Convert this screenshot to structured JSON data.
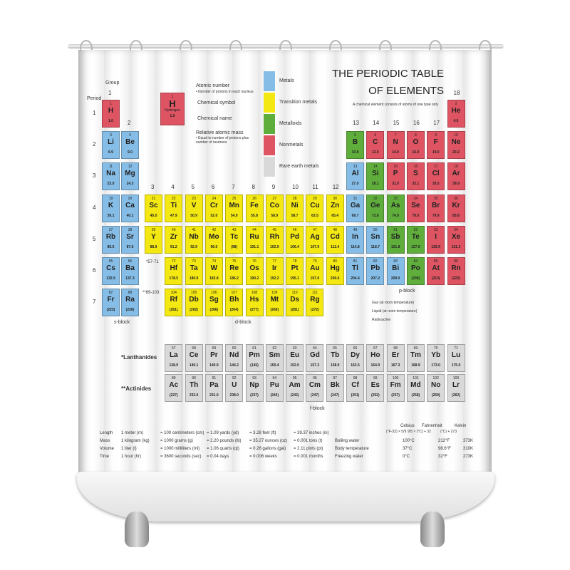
{
  "title_line1": "THE PERIODIC TABLE",
  "title_line2": "OF ELEMENTS",
  "subtitle": "A chemical element consists of atoms of one type only",
  "group_label": "Group",
  "period_label": "Period",
  "groups": [
    "1",
    "2",
    "3",
    "4",
    "5",
    "6",
    "7",
    "8",
    "9",
    "10",
    "11",
    "12",
    "13",
    "14",
    "15",
    "16",
    "17",
    "18"
  ],
  "periods": [
    "1",
    "2",
    "3",
    "4",
    "5",
    "6",
    "7"
  ],
  "key": {
    "number": "1",
    "symbol": "H",
    "name": "Hydrogen",
    "mass": "1.0",
    "labels": [
      "Atomic number",
      "• Number of protons in each nucleus",
      "Chemical symbol",
      "Chemical name",
      "Relative atomic mass",
      "• Equal to number of protons plus number of neutrons"
    ]
  },
  "legend": [
    {
      "label": "Metals",
      "color": "#86bde6"
    },
    {
      "label": "Transition metals",
      "color": "#f4e812"
    },
    {
      "label": "Metalloids",
      "color": "#5fae3c"
    },
    {
      "label": "Nonmetals",
      "color": "#de5462"
    },
    {
      "label": "Rare earth metals",
      "color": "#d9d9d9"
    }
  ],
  "colors": {
    "m": "#86bde6",
    "t": "#f4e812",
    "g": "#5fae3c",
    "n": "#de5462",
    "r": "#d9d9d9"
  },
  "placeholders": [
    "*57-71",
    "**89-103"
  ],
  "blocks": {
    "s": "s-block",
    "d": "d-block",
    "p": "p-block",
    "f": "f-block"
  },
  "states": [
    "Gas (at room temperature)",
    "Liquid (at room temperature)",
    "Radioactive"
  ],
  "lanthanides_label": "*Lanthanides",
  "actinides_label": "**Actinides",
  "elements": [
    [
      1,
      "H",
      "1.0",
      "n",
      1,
      1
    ],
    [
      2,
      "He",
      "4.0",
      "n",
      1,
      18
    ],
    [
      3,
      "Li",
      "6.9",
      "m",
      2,
      1
    ],
    [
      4,
      "Be",
      "9.0",
      "m",
      2,
      2
    ],
    [
      5,
      "B",
      "10.8",
      "g",
      2,
      13
    ],
    [
      6,
      "C",
      "12.0",
      "n",
      2,
      14
    ],
    [
      7,
      "N",
      "14.0",
      "n",
      2,
      15
    ],
    [
      8,
      "O",
      "16.0",
      "n",
      2,
      16
    ],
    [
      9,
      "F",
      "19.0",
      "n",
      2,
      17
    ],
    [
      10,
      "Ne",
      "20.2",
      "n",
      2,
      18
    ],
    [
      11,
      "Na",
      "23.0",
      "m",
      3,
      1
    ],
    [
      12,
      "Mg",
      "24.3",
      "m",
      3,
      2
    ],
    [
      13,
      "Al",
      "27.0",
      "m",
      3,
      13
    ],
    [
      14,
      "Si",
      "28.1",
      "g",
      3,
      14
    ],
    [
      15,
      "P",
      "31.0",
      "n",
      3,
      15
    ],
    [
      16,
      "S",
      "32.1",
      "n",
      3,
      16
    ],
    [
      17,
      "Cl",
      "35.5",
      "n",
      3,
      17
    ],
    [
      18,
      "Ar",
      "39.9",
      "n",
      3,
      18
    ],
    [
      19,
      "K",
      "39.1",
      "m",
      4,
      1
    ],
    [
      20,
      "Ca",
      "40.1",
      "m",
      4,
      2
    ],
    [
      21,
      "Sc",
      "45.0",
      "t",
      4,
      3
    ],
    [
      22,
      "Ti",
      "47.9",
      "t",
      4,
      4
    ],
    [
      23,
      "V",
      "50.9",
      "t",
      4,
      5
    ],
    [
      24,
      "Cr",
      "52.0",
      "t",
      4,
      6
    ],
    [
      25,
      "Mn",
      "54.9",
      "t",
      4,
      7
    ],
    [
      26,
      "Fe",
      "55.8",
      "t",
      4,
      8
    ],
    [
      27,
      "Co",
      "58.9",
      "t",
      4,
      9
    ],
    [
      28,
      "Ni",
      "58.7",
      "t",
      4,
      10
    ],
    [
      29,
      "Cu",
      "63.5",
      "t",
      4,
      11
    ],
    [
      30,
      "Zn",
      "65.4",
      "t",
      4,
      12
    ],
    [
      31,
      "Ga",
      "69.7",
      "m",
      4,
      13
    ],
    [
      32,
      "Ge",
      "72.6",
      "g",
      4,
      14
    ],
    [
      33,
      "As",
      "74.9",
      "g",
      4,
      15
    ],
    [
      34,
      "Se",
      "79.0",
      "n",
      4,
      16
    ],
    [
      35,
      "Br",
      "79.9",
      "n",
      4,
      17
    ],
    [
      36,
      "Kr",
      "83.8",
      "n",
      4,
      18
    ],
    [
      37,
      "Rb",
      "85.5",
      "m",
      5,
      1
    ],
    [
      38,
      "Sr",
      "87.6",
      "m",
      5,
      2
    ],
    [
      39,
      "Y",
      "88.9",
      "t",
      5,
      3
    ],
    [
      40,
      "Zr",
      "91.2",
      "t",
      5,
      4
    ],
    [
      41,
      "Nb",
      "92.9",
      "t",
      5,
      5
    ],
    [
      42,
      "Mo",
      "96.0",
      "t",
      5,
      6
    ],
    [
      43,
      "Tc",
      "(98)",
      "t",
      5,
      7
    ],
    [
      44,
      "Ru",
      "101.1",
      "t",
      5,
      8
    ],
    [
      45,
      "Rh",
      "102.9",
      "t",
      5,
      9
    ],
    [
      46,
      "Pd",
      "106.4",
      "t",
      5,
      10
    ],
    [
      47,
      "Ag",
      "107.9",
      "t",
      5,
      11
    ],
    [
      48,
      "Cd",
      "112.4",
      "t",
      5,
      12
    ],
    [
      49,
      "In",
      "114.8",
      "m",
      5,
      13
    ],
    [
      50,
      "Sn",
      "118.7",
      "m",
      5,
      14
    ],
    [
      51,
      "Sb",
      "121.8",
      "g",
      5,
      15
    ],
    [
      52,
      "Te",
      "127.6",
      "g",
      5,
      16
    ],
    [
      53,
      "I",
      "126.9",
      "n",
      5,
      17
    ],
    [
      54,
      "Xe",
      "131.3",
      "n",
      5,
      18
    ],
    [
      55,
      "Cs",
      "132.9",
      "m",
      6,
      1
    ],
    [
      56,
      "Ba",
      "137.3",
      "m",
      6,
      2
    ],
    [
      72,
      "Hf",
      "178.5",
      "t",
      6,
      4
    ],
    [
      73,
      "Ta",
      "180.9",
      "t",
      6,
      5
    ],
    [
      74,
      "W",
      "183.8",
      "t",
      6,
      6
    ],
    [
      75,
      "Re",
      "186.2",
      "t",
      6,
      7
    ],
    [
      76,
      "Os",
      "190.2",
      "t",
      6,
      8
    ],
    [
      77,
      "Ir",
      "192.2",
      "t",
      6,
      9
    ],
    [
      78,
      "Pt",
      "195.1",
      "t",
      6,
      10
    ],
    [
      79,
      "Au",
      "197.0",
      "t",
      6,
      11
    ],
    [
      80,
      "Hg",
      "200.6",
      "t",
      6,
      12
    ],
    [
      81,
      "Tl",
      "204.4",
      "m",
      6,
      13
    ],
    [
      82,
      "Pb",
      "207.2",
      "m",
      6,
      14
    ],
    [
      83,
      "Bi",
      "209.0",
      "m",
      6,
      15
    ],
    [
      84,
      "Po",
      "(209)",
      "g",
      6,
      16
    ],
    [
      85,
      "At",
      "(210)",
      "n",
      6,
      17
    ],
    [
      86,
      "Rn",
      "(222)",
      "n",
      6,
      18
    ],
    [
      87,
      "Fr",
      "(223)",
      "m",
      7,
      1
    ],
    [
      88,
      "Ra",
      "(226)",
      "m",
      7,
      2
    ],
    [
      104,
      "Rf",
      "(261)",
      "t",
      7,
      4
    ],
    [
      105,
      "Db",
      "(262)",
      "t",
      7,
      5
    ],
    [
      106,
      "Sg",
      "(266)",
      "t",
      7,
      6
    ],
    [
      107,
      "Bh",
      "(264)",
      "t",
      7,
      7
    ],
    [
      108,
      "Hs",
      "(277)",
      "t",
      7,
      8
    ],
    [
      109,
      "Mt",
      "(268)",
      "t",
      7,
      9
    ],
    [
      110,
      "Ds",
      "(281)",
      "t",
      7,
      10
    ],
    [
      111,
      "Rg",
      "(272)",
      "t",
      7,
      11
    ],
    [
      57,
      "La",
      "138.9",
      "r",
      9,
      4
    ],
    [
      58,
      "Ce",
      "140.1",
      "r",
      9,
      5
    ],
    [
      59,
      "Pr",
      "140.9",
      "r",
      9,
      6
    ],
    [
      60,
      "Nd",
      "144.2",
      "r",
      9,
      7
    ],
    [
      61,
      "Pm",
      "(145)",
      "r",
      9,
      8
    ],
    [
      62,
      "Sm",
      "150.4",
      "r",
      9,
      9
    ],
    [
      63,
      "Eu",
      "152.0",
      "r",
      9,
      10
    ],
    [
      64,
      "Gd",
      "157.3",
      "r",
      9,
      11
    ],
    [
      65,
      "Tb",
      "158.9",
      "r",
      9,
      12
    ],
    [
      66,
      "Dy",
      "162.5",
      "r",
      9,
      13
    ],
    [
      67,
      "Ho",
      "164.9",
      "r",
      9,
      14
    ],
    [
      68,
      "Er",
      "167.3",
      "r",
      9,
      15
    ],
    [
      69,
      "Tm",
      "168.9",
      "r",
      9,
      16
    ],
    [
      70,
      "Yb",
      "173.0",
      "r",
      9,
      17
    ],
    [
      71,
      "Lu",
      "175.0",
      "r",
      9,
      18
    ],
    [
      89,
      "Ac",
      "(227)",
      "r",
      10,
      4
    ],
    [
      90,
      "Th",
      "232.0",
      "r",
      10,
      5
    ],
    [
      91,
      "Pa",
      "231.0",
      "r",
      10,
      6
    ],
    [
      92,
      "U",
      "238.0",
      "r",
      10,
      7
    ],
    [
      93,
      "Np",
      "(237)",
      "r",
      10,
      8
    ],
    [
      94,
      "Pu",
      "(244)",
      "r",
      10,
      9
    ],
    [
      95,
      "Am",
      "(243)",
      "r",
      10,
      10
    ],
    [
      96,
      "Cm",
      "(247)",
      "r",
      10,
      11
    ],
    [
      97,
      "Bk",
      "(247)",
      "r",
      10,
      12
    ],
    [
      98,
      "Cf",
      "(251)",
      "r",
      10,
      13
    ],
    [
      99,
      "Es",
      "(252)",
      "r",
      10,
      14
    ],
    [
      100,
      "Fm",
      "(257)",
      "r",
      10,
      15
    ],
    [
      101,
      "Md",
      "(258)",
      "r",
      10,
      16
    ],
    [
      102,
      "No",
      "(259)",
      "r",
      10,
      17
    ],
    [
      103,
      "Lr",
      "(262)",
      "r",
      10,
      18
    ]
  ],
  "units": [
    [
      "Length",
      "1 meter (m)",
      "= 100 centimeters (cm)",
      "= 1.09 yards (yd)",
      "= 3.28 feet (ft)",
      "= 39.37 inches (in)"
    ],
    [
      "Mass",
      "1 kilogram (kg)",
      "= 1000 grams (g)",
      "= 2.20 pounds (lb)",
      "= 35.27 ounces (oz)",
      "= 0.001 tons (t)"
    ],
    [
      "Volume",
      "1 liter (l)",
      "= 1000 milliliters (ml)",
      "= 1.06 quarts (qt)",
      "= 0.26 gallons (gal)",
      "= 2.11 pints (pt)"
    ],
    [
      "Time",
      "1 hour (hr)",
      "= 3600 seconds (sec)",
      "= 0.04 days",
      "= 0.006 weeks",
      "= 0.001 months"
    ]
  ],
  "temps": {
    "headers": [
      "Celsius",
      "Fahrenheit",
      "Kelvin"
    ],
    "formulas": [
      "(°F-32) × 5/9",
      "9/5 × (°C) + 32",
      "(°C) + 273"
    ],
    "rows": [
      [
        "Boiling water",
        "100°C",
        "212°F",
        "373K"
      ],
      [
        "Body temperature",
        "37°C",
        "98.6°F",
        "310K"
      ],
      [
        "Freezing water",
        "0°C",
        "32°F",
        "273K"
      ]
    ]
  }
}
